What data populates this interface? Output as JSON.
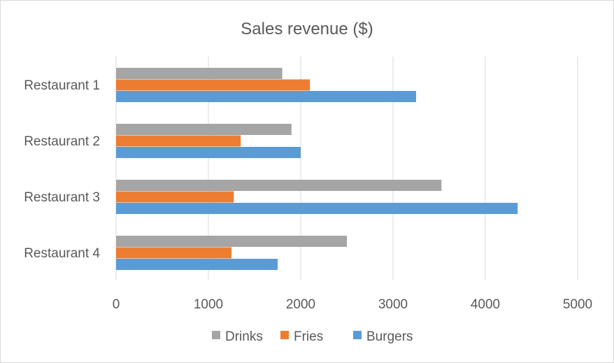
{
  "chart_data": {
    "type": "bar",
    "orientation": "horizontal",
    "title": "Sales revenue ($)",
    "xlabel": "",
    "ylabel": "",
    "categories": [
      "Restaurant 1",
      "Restaurant 2",
      "Restaurant 3",
      "Restaurant 4"
    ],
    "series": [
      {
        "name": "Drinks",
        "color": "#a5a5a5",
        "values": [
          1800,
          1900,
          3525,
          2500
        ]
      },
      {
        "name": "Fries",
        "color": "#ed7d31",
        "values": [
          2100,
          1350,
          1275,
          1250
        ]
      },
      {
        "name": "Burgers",
        "color": "#5b9bd5",
        "values": [
          3250,
          2000,
          4350,
          1750
        ]
      }
    ],
    "xlim": [
      0,
      5000
    ],
    "xticks": [
      "0",
      "1000",
      "2000",
      "3000",
      "4000",
      "5000"
    ],
    "grid": true,
    "legend_position": "bottom"
  }
}
